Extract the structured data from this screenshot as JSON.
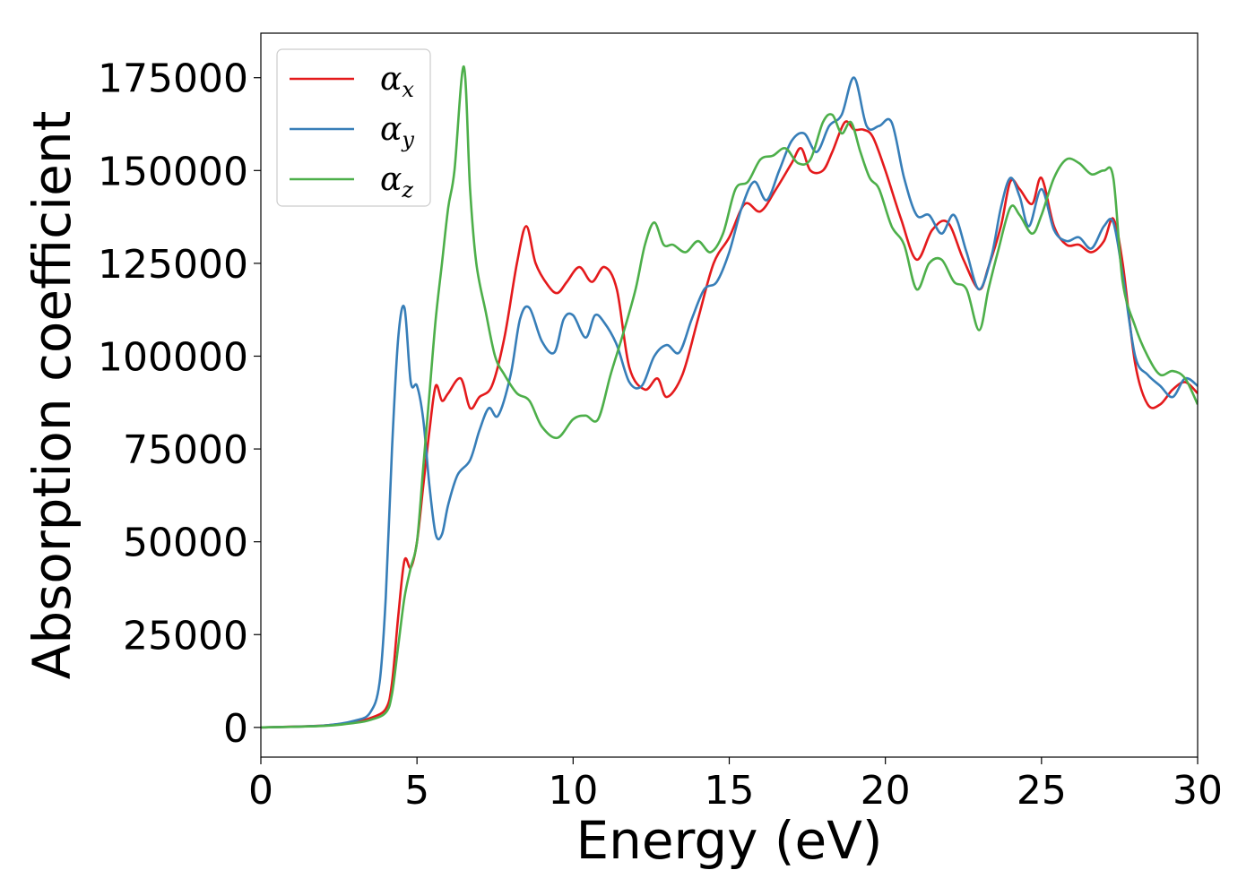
{
  "chart_data": {
    "type": "line",
    "title": "",
    "xlabel": "Energy (eV)",
    "ylabel": "Absorption coefficient",
    "xlim": [
      0,
      30
    ],
    "ylim": [
      -8000,
      187000
    ],
    "xticks": [
      0,
      5,
      10,
      15,
      20,
      25,
      30
    ],
    "xtick_labels": [
      "0",
      "5",
      "10",
      "15",
      "20",
      "25",
      "30"
    ],
    "yticks": [
      0,
      25000,
      50000,
      75000,
      100000,
      125000,
      150000,
      175000
    ],
    "ytick_labels": [
      "0",
      "25000",
      "50000",
      "75000",
      "100000",
      "125000",
      "150000",
      "175000"
    ],
    "grid": false,
    "legend_position": "top-left",
    "series": [
      {
        "name": "α_x",
        "label_main": "α",
        "label_sub": "x",
        "color": "#e41a1c",
        "x": [
          0,
          2,
          3,
          3.5,
          4,
          4.2,
          4.4,
          4.6,
          4.8,
          5.0,
          5.2,
          5.4,
          5.6,
          5.8,
          6.0,
          6.4,
          6.7,
          7.0,
          7.4,
          7.8,
          8.2,
          8.5,
          8.8,
          9.2,
          9.5,
          9.8,
          10.2,
          10.6,
          11.0,
          11.4,
          11.8,
          12.3,
          12.7,
          13.0,
          13.5,
          14.0,
          14.5,
          15.0,
          15.5,
          16.0,
          16.5,
          17.0,
          17.3,
          17.6,
          18.0,
          18.3,
          18.7,
          19.0,
          19.3,
          19.6,
          20.0,
          20.5,
          21.0,
          21.5,
          22.0,
          22.5,
          23.0,
          23.3,
          23.7,
          24.0,
          24.3,
          24.7,
          25.0,
          25.4,
          25.8,
          26.2,
          26.6,
          27.0,
          27.3,
          27.6,
          28.0,
          28.4,
          28.8,
          29.2,
          29.6,
          30.0
        ],
        "y": [
          0,
          500,
          1500,
          2500,
          5000,
          12000,
          30000,
          45000,
          43000,
          50000,
          65000,
          80000,
          92000,
          88000,
          90000,
          94000,
          86000,
          89000,
          92000,
          105000,
          125000,
          135000,
          125000,
          119000,
          117000,
          120000,
          124000,
          120000,
          124000,
          118000,
          97000,
          91000,
          94000,
          89000,
          95000,
          110000,
          125000,
          132000,
          141000,
          139000,
          145000,
          152000,
          156000,
          150000,
          150000,
          155000,
          163000,
          161000,
          161000,
          159000,
          150000,
          137000,
          126000,
          134000,
          136000,
          126000,
          118000,
          124000,
          135000,
          147000,
          145000,
          141000,
          148000,
          135000,
          130000,
          130000,
          128000,
          131000,
          137000,
          125000,
          98000,
          87000,
          87000,
          91000,
          93000,
          90000
        ]
      },
      {
        "name": "α_y",
        "label_main": "α",
        "label_sub": "y",
        "color": "#377eb8",
        "x": [
          0,
          2,
          3,
          3.5,
          3.8,
          4.0,
          4.2,
          4.4,
          4.6,
          4.8,
          5.0,
          5.2,
          5.4,
          5.6,
          5.8,
          6.0,
          6.3,
          6.7,
          7.0,
          7.3,
          7.6,
          8.0,
          8.3,
          8.6,
          9.0,
          9.4,
          9.7,
          10.0,
          10.4,
          10.7,
          11.0,
          11.4,
          11.8,
          12.2,
          12.6,
          13.0,
          13.4,
          13.8,
          14.2,
          14.6,
          15.0,
          15.4,
          15.8,
          16.2,
          16.6,
          17.0,
          17.4,
          17.8,
          18.2,
          18.6,
          19.0,
          19.4,
          19.8,
          20.2,
          20.6,
          21.0,
          21.4,
          21.8,
          22.2,
          22.6,
          23.0,
          23.4,
          23.7,
          24.0,
          24.3,
          24.6,
          25.0,
          25.4,
          25.8,
          26.2,
          26.6,
          27.0,
          27.3,
          27.6,
          28.0,
          28.4,
          28.8,
          29.2,
          29.6,
          30.0
        ],
        "y": [
          0,
          500,
          1800,
          4000,
          12000,
          35000,
          75000,
          105000,
          113000,
          93000,
          92000,
          83000,
          65000,
          52000,
          52000,
          60000,
          68000,
          72000,
          80000,
          86000,
          84000,
          95000,
          110000,
          113000,
          104000,
          101000,
          110000,
          111000,
          105000,
          111000,
          109000,
          103000,
          93000,
          92000,
          100000,
          103000,
          101000,
          110000,
          118000,
          120000,
          128000,
          140000,
          147000,
          142000,
          150000,
          158000,
          160000,
          155000,
          162000,
          165000,
          175000,
          162000,
          162000,
          163000,
          148000,
          138000,
          138000,
          133000,
          138000,
          128000,
          118000,
          127000,
          140000,
          148000,
          143000,
          135000,
          145000,
          134000,
          131000,
          132000,
          129000,
          135000,
          136000,
          122000,
          100000,
          95000,
          92000,
          89000,
          94000,
          92000
        ]
      },
      {
        "name": "α_z",
        "label_main": "α",
        "label_sub": "z",
        "color": "#4daf4a",
        "x": [
          0,
          2,
          3,
          3.5,
          4,
          4.2,
          4.4,
          4.6,
          4.8,
          5.0,
          5.2,
          5.4,
          5.6,
          5.8,
          6.0,
          6.2,
          6.5,
          6.7,
          6.9,
          7.2,
          7.5,
          7.8,
          8.2,
          8.6,
          9.0,
          9.5,
          10.0,
          10.4,
          10.8,
          11.2,
          11.6,
          12.0,
          12.3,
          12.6,
          12.9,
          13.2,
          13.6,
          14.0,
          14.4,
          14.8,
          15.2,
          15.6,
          16.0,
          16.4,
          16.8,
          17.2,
          17.6,
          18.0,
          18.3,
          18.6,
          18.9,
          19.2,
          19.5,
          19.8,
          20.2,
          20.6,
          21.0,
          21.4,
          21.8,
          22.2,
          22.6,
          23.0,
          23.3,
          23.6,
          24.0,
          24.3,
          24.7,
          25.0,
          25.4,
          25.8,
          26.2,
          26.6,
          27.0,
          27.3,
          27.6,
          28.0,
          28.4,
          28.8,
          29.2,
          29.6,
          30.0
        ],
        "y": [
          0,
          400,
          1200,
          2000,
          4000,
          9000,
          22000,
          35000,
          43000,
          50000,
          70000,
          90000,
          110000,
          125000,
          140000,
          150000,
          178000,
          145000,
          125000,
          112000,
          100000,
          95000,
          90000,
          88000,
          81000,
          78000,
          83000,
          84000,
          83000,
          95000,
          106000,
          118000,
          130000,
          136000,
          130000,
          130000,
          128000,
          131000,
          128000,
          133000,
          145000,
          147000,
          153000,
          154000,
          156000,
          152000,
          153000,
          163000,
          165000,
          160000,
          163000,
          155000,
          148000,
          145000,
          135000,
          130000,
          118000,
          125000,
          126000,
          120000,
          118000,
          107000,
          118000,
          128000,
          140000,
          138000,
          133000,
          138000,
          148000,
          153000,
          152000,
          149000,
          150000,
          148000,
          120000,
          108000,
          100000,
          95000,
          96000,
          94000,
          87000
        ]
      }
    ]
  }
}
